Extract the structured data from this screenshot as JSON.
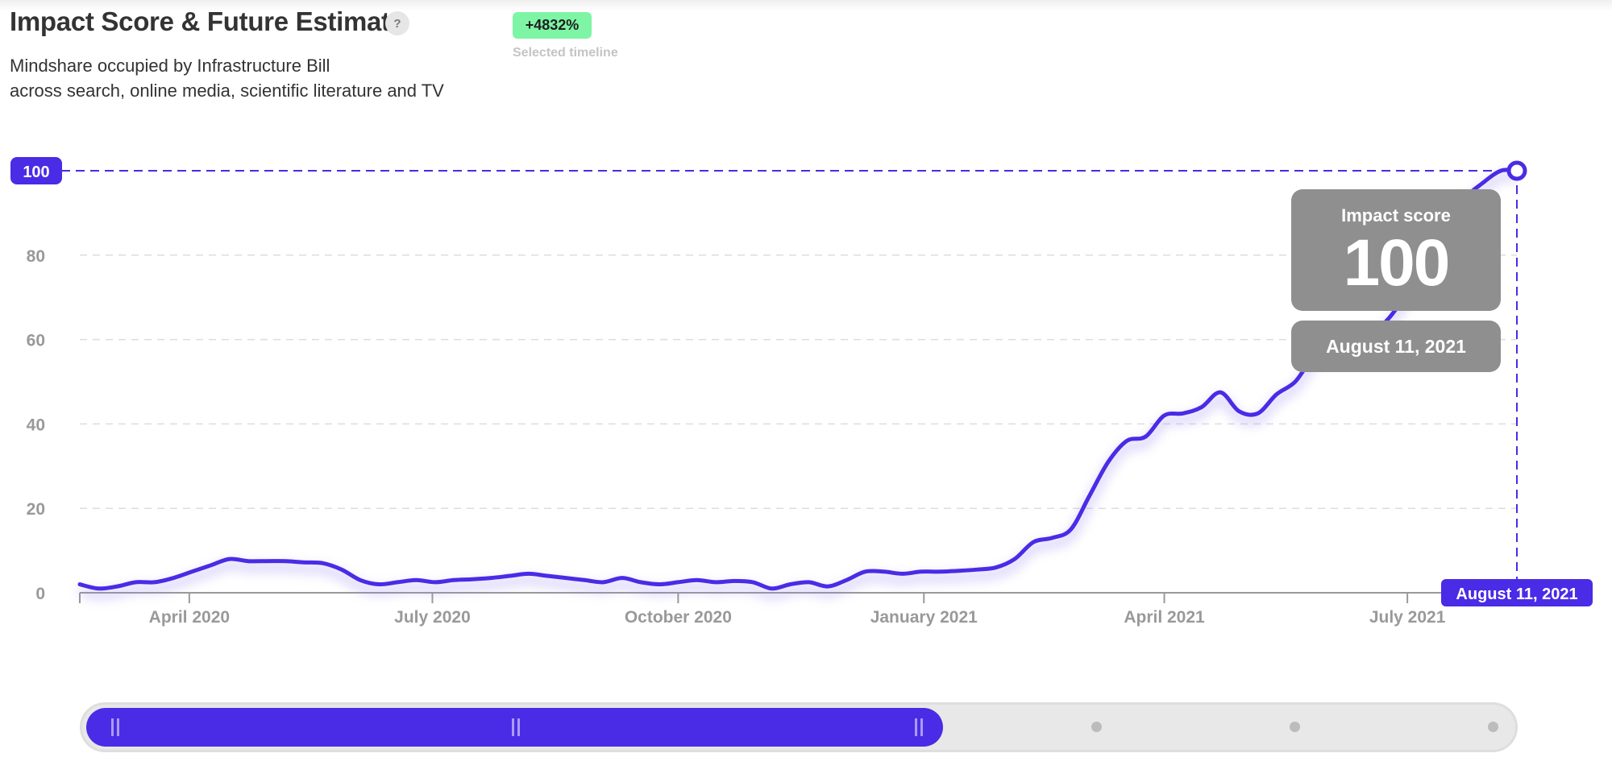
{
  "header": {
    "title": "Impact Score & Future Estimate",
    "help_icon": "?",
    "subtitle_line1": "Mindshare occupied by Infrastructure Bill",
    "subtitle_line2": "across search, online media, scientific literature and TV",
    "change_badge": "+4832%",
    "change_caption": "Selected timeline"
  },
  "tooltip": {
    "label": "Impact score",
    "value": "100",
    "date": "August 11, 2021"
  },
  "colors": {
    "line": "#4a2be6",
    "accent": "#4a2be6",
    "badge": "#7ef5a5",
    "tooltip_bg": "#8f8f8f",
    "grid": "#dddddd",
    "axis_text": "#999999"
  },
  "chart_data": {
    "type": "line",
    "title": "Impact Score & Future Estimate",
    "xlabel": "",
    "ylabel": "",
    "ylim": [
      0,
      100
    ],
    "yticks": [
      0,
      20,
      40,
      60,
      80,
      100
    ],
    "grid": "horizontal dashed",
    "x_tick_labels": [
      {
        "label": "April 2020",
        "date": "2020-04-01"
      },
      {
        "label": "July 2020",
        "date": "2020-07-01"
      },
      {
        "label": "October 2020",
        "date": "2020-10-01"
      },
      {
        "label": "January 2021",
        "date": "2021-01-01"
      },
      {
        "label": "April 2021",
        "date": "2021-04-01"
      },
      {
        "label": "July 2021",
        "date": "2021-07-01"
      }
    ],
    "highlight": {
      "date": "2021-08-11",
      "value": 100,
      "y_label": "100",
      "x_label": "August 11, 2021"
    },
    "x_range": [
      "2020-02-20",
      "2021-08-11"
    ],
    "x": [
      "2020-02-20",
      "2020-02-27",
      "2020-03-05",
      "2020-03-12",
      "2020-03-19",
      "2020-03-26",
      "2020-04-02",
      "2020-04-09",
      "2020-04-16",
      "2020-04-23",
      "2020-04-30",
      "2020-05-07",
      "2020-05-14",
      "2020-05-21",
      "2020-05-28",
      "2020-06-04",
      "2020-06-11",
      "2020-06-18",
      "2020-06-25",
      "2020-07-02",
      "2020-07-09",
      "2020-07-16",
      "2020-07-23",
      "2020-07-30",
      "2020-08-06",
      "2020-08-13",
      "2020-08-20",
      "2020-08-27",
      "2020-09-03",
      "2020-09-10",
      "2020-09-17",
      "2020-09-24",
      "2020-10-01",
      "2020-10-08",
      "2020-10-15",
      "2020-10-22",
      "2020-10-29",
      "2020-11-05",
      "2020-11-12",
      "2020-11-19",
      "2020-11-26",
      "2020-12-03",
      "2020-12-10",
      "2020-12-17",
      "2020-12-24",
      "2020-12-31",
      "2021-01-07",
      "2021-01-14",
      "2021-01-21",
      "2021-01-28",
      "2021-02-04",
      "2021-02-11",
      "2021-02-18",
      "2021-02-25",
      "2021-03-04",
      "2021-03-11",
      "2021-03-18",
      "2021-03-25",
      "2021-04-01",
      "2021-04-08",
      "2021-04-15",
      "2021-04-22",
      "2021-04-29",
      "2021-05-06",
      "2021-05-13",
      "2021-05-20",
      "2021-05-27",
      "2021-06-03",
      "2021-06-10",
      "2021-06-17",
      "2021-06-24",
      "2021-07-01",
      "2021-07-08",
      "2021-07-15",
      "2021-07-22",
      "2021-07-29",
      "2021-08-05",
      "2021-08-11"
    ],
    "series": [
      {
        "values": [
          2,
          1,
          1.5,
          2.5,
          2.5,
          3.5,
          5,
          6.5,
          8,
          7.5,
          7.5,
          7.5,
          7.2,
          7,
          5.5,
          3,
          2,
          2.5,
          3,
          2.5,
          3,
          3.2,
          3.5,
          4,
          4.5,
          4,
          3.5,
          3,
          2.5,
          3.5,
          2.5,
          2,
          2.5,
          3,
          2.5,
          2.8,
          2.5,
          1,
          2,
          2.5,
          1.5,
          3,
          5,
          5,
          4.5,
          5,
          5,
          5.2,
          5.5,
          6,
          8,
          12,
          13,
          15,
          23,
          31,
          36,
          37,
          42,
          42.5,
          44,
          47.5,
          43,
          42.5,
          47,
          50,
          56,
          58,
          60,
          61,
          65,
          71,
          77,
          85,
          93,
          97,
          100,
          100
        ]
      }
    ]
  },
  "slider": {
    "range_start_fraction": 0.0,
    "range_end_fraction": 0.6,
    "track_dot_count": 3
  }
}
